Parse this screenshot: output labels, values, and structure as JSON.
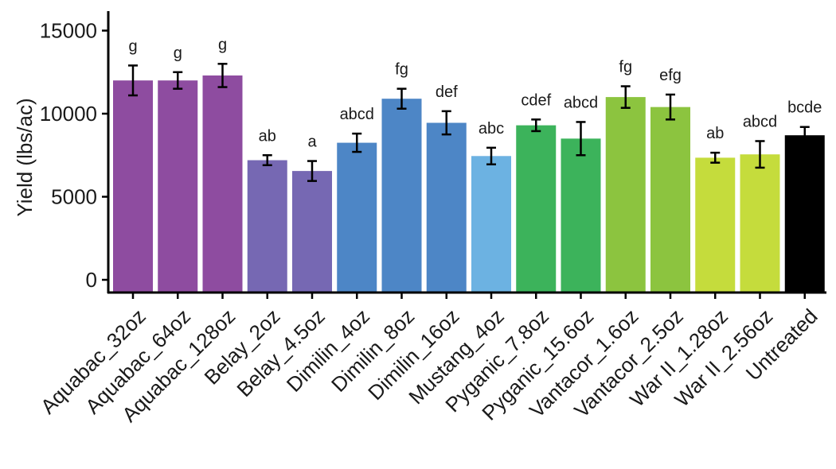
{
  "chart_data": {
    "type": "bar",
    "title": "",
    "xlabel": "",
    "ylabel": "Yield (lbs/ac)",
    "ylim": [
      0,
      16000
    ],
    "yticks": [
      0,
      5000,
      10000,
      15000
    ],
    "categories": [
      "Aquabac_32oz",
      "Aquabac_64oz",
      "Aquabac_128oz",
      "Belay_2oz",
      "Belay_4.5oz",
      "Dimilin_4oz",
      "Dimilin_8oz",
      "Dimilin_16oz",
      "Mustang_4oz",
      "Pyganic_7.8oz",
      "Pyganic_15.6oz",
      "Vantacor_1.6oz",
      "Vantacor_2.5oz",
      "War II_1.28oz",
      "War II_2.56oz",
      "Untreated"
    ],
    "values": [
      12000,
      12000,
      12300,
      7200,
      6550,
      8250,
      10900,
      9450,
      7450,
      9300,
      8500,
      11000,
      10400,
      7350,
      7550,
      8700
    ],
    "error_low": [
      11100,
      11500,
      11600,
      6900,
      5950,
      7700,
      10300,
      8750,
      6950,
      8950,
      7500,
      10350,
      9650,
      7050,
      6750,
      8200
    ],
    "error_high": [
      12900,
      12500,
      13000,
      7500,
      7150,
      8800,
      11500,
      10150,
      7950,
      9650,
      9500,
      11650,
      11150,
      7650,
      8350,
      9200
    ],
    "significance": [
      "g",
      "g",
      "g",
      "ab",
      "a",
      "abcd",
      "fg",
      "def",
      "abc",
      "cdef",
      "abcd",
      "fg",
      "efg",
      "ab",
      "abcd",
      "bcde"
    ],
    "colors": [
      "#8e4ca0",
      "#8e4ca0",
      "#8e4ca0",
      "#7668b3",
      "#7668b3",
      "#4d86c6",
      "#4d86c6",
      "#4d86c6",
      "#6cb2e2",
      "#3cb35b",
      "#3cb35b",
      "#8cc43f",
      "#8cc43f",
      "#c5dc3c",
      "#c5dc3c",
      "#000000"
    ],
    "grid": false,
    "legend": "none"
  }
}
